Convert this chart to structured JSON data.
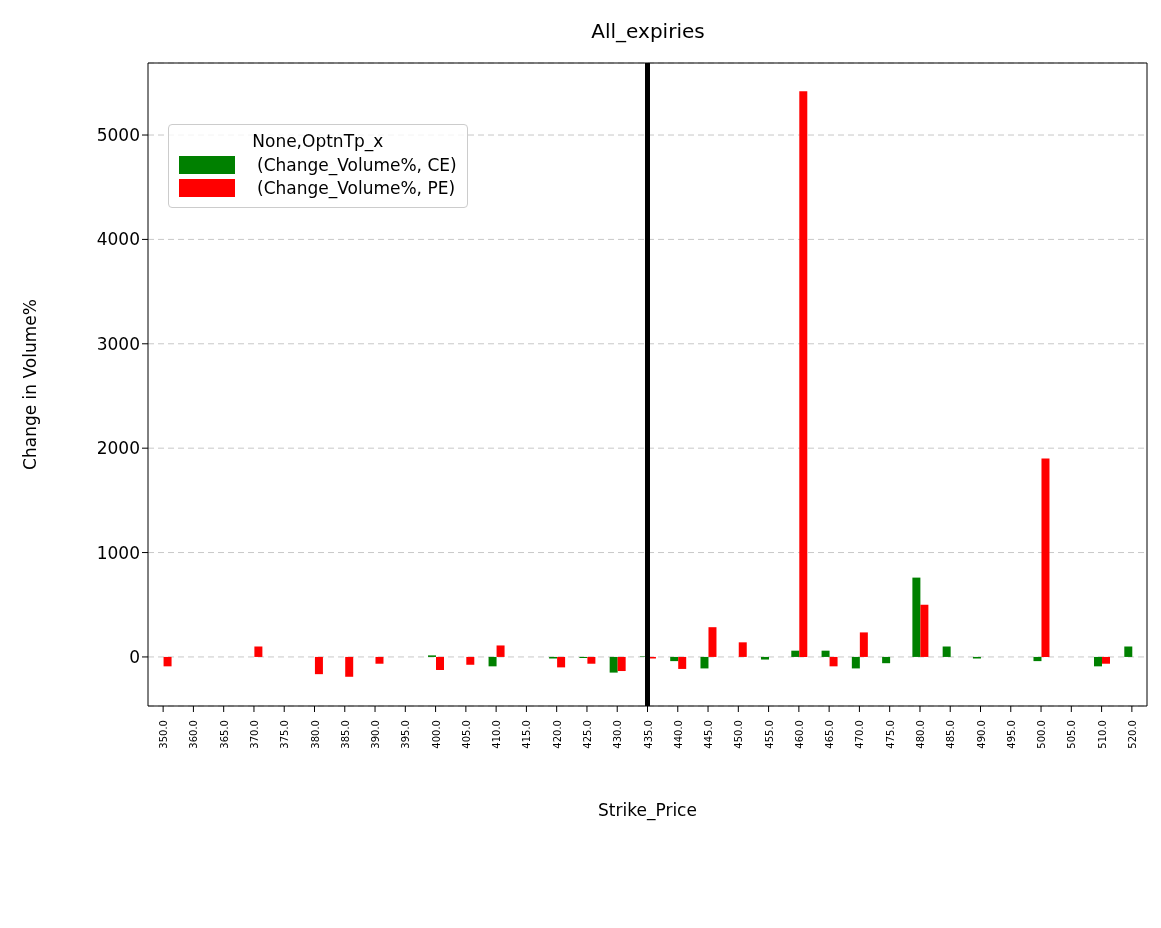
{
  "chart_data": {
    "type": "bar",
    "title": "All_expiries",
    "xlabel": "Strike_Price",
    "ylabel": "Change in Volume%",
    "legend_title": "None,OptnTp_x",
    "categories": [
      "350.0",
      "360.0",
      "365.0",
      "370.0",
      "375.0",
      "380.0",
      "385.0",
      "390.0",
      "395.0",
      "400.0",
      "405.0",
      "410.0",
      "415.0",
      "420.0",
      "425.0",
      "430.0",
      "435.0",
      "440.0",
      "445.0",
      "450.0",
      "455.0",
      "460.0",
      "465.0",
      "470.0",
      "475.0",
      "480.0",
      "485.0",
      "490.0",
      "495.0",
      "500.0",
      "505.0",
      "510.0",
      "520.0"
    ],
    "series": [
      {
        "name": "(Change_Volume%, CE)",
        "color": "#008000",
        "values": [
          null,
          null,
          null,
          null,
          null,
          null,
          null,
          null,
          null,
          15,
          null,
          -90,
          null,
          -15,
          -10,
          -150,
          5,
          -40,
          -110,
          null,
          -25,
          60,
          60,
          -110,
          -60,
          760,
          100,
          -15,
          null,
          -40,
          null,
          -90,
          100
        ]
      },
      {
        "name": "(Change_Volume%, PE)",
        "color": "#ff0000",
        "values": [
          -90,
          null,
          null,
          100,
          null,
          -165,
          -190,
          -65,
          null,
          -125,
          -75,
          110,
          null,
          -100,
          -65,
          -135,
          -15,
          -115,
          285,
          140,
          null,
          5420,
          -90,
          235,
          null,
          500,
          null,
          null,
          null,
          1900,
          null,
          -65,
          null
        ]
      }
    ],
    "ylim": [
      -470,
      5690
    ],
    "yticks": [
      0,
      1000,
      2000,
      3000,
      4000,
      5000
    ],
    "grid": "y",
    "legend": "top left",
    "ref_lines": [
      {
        "axis": "x",
        "value": "435.0",
        "color": "#000000"
      }
    ]
  }
}
